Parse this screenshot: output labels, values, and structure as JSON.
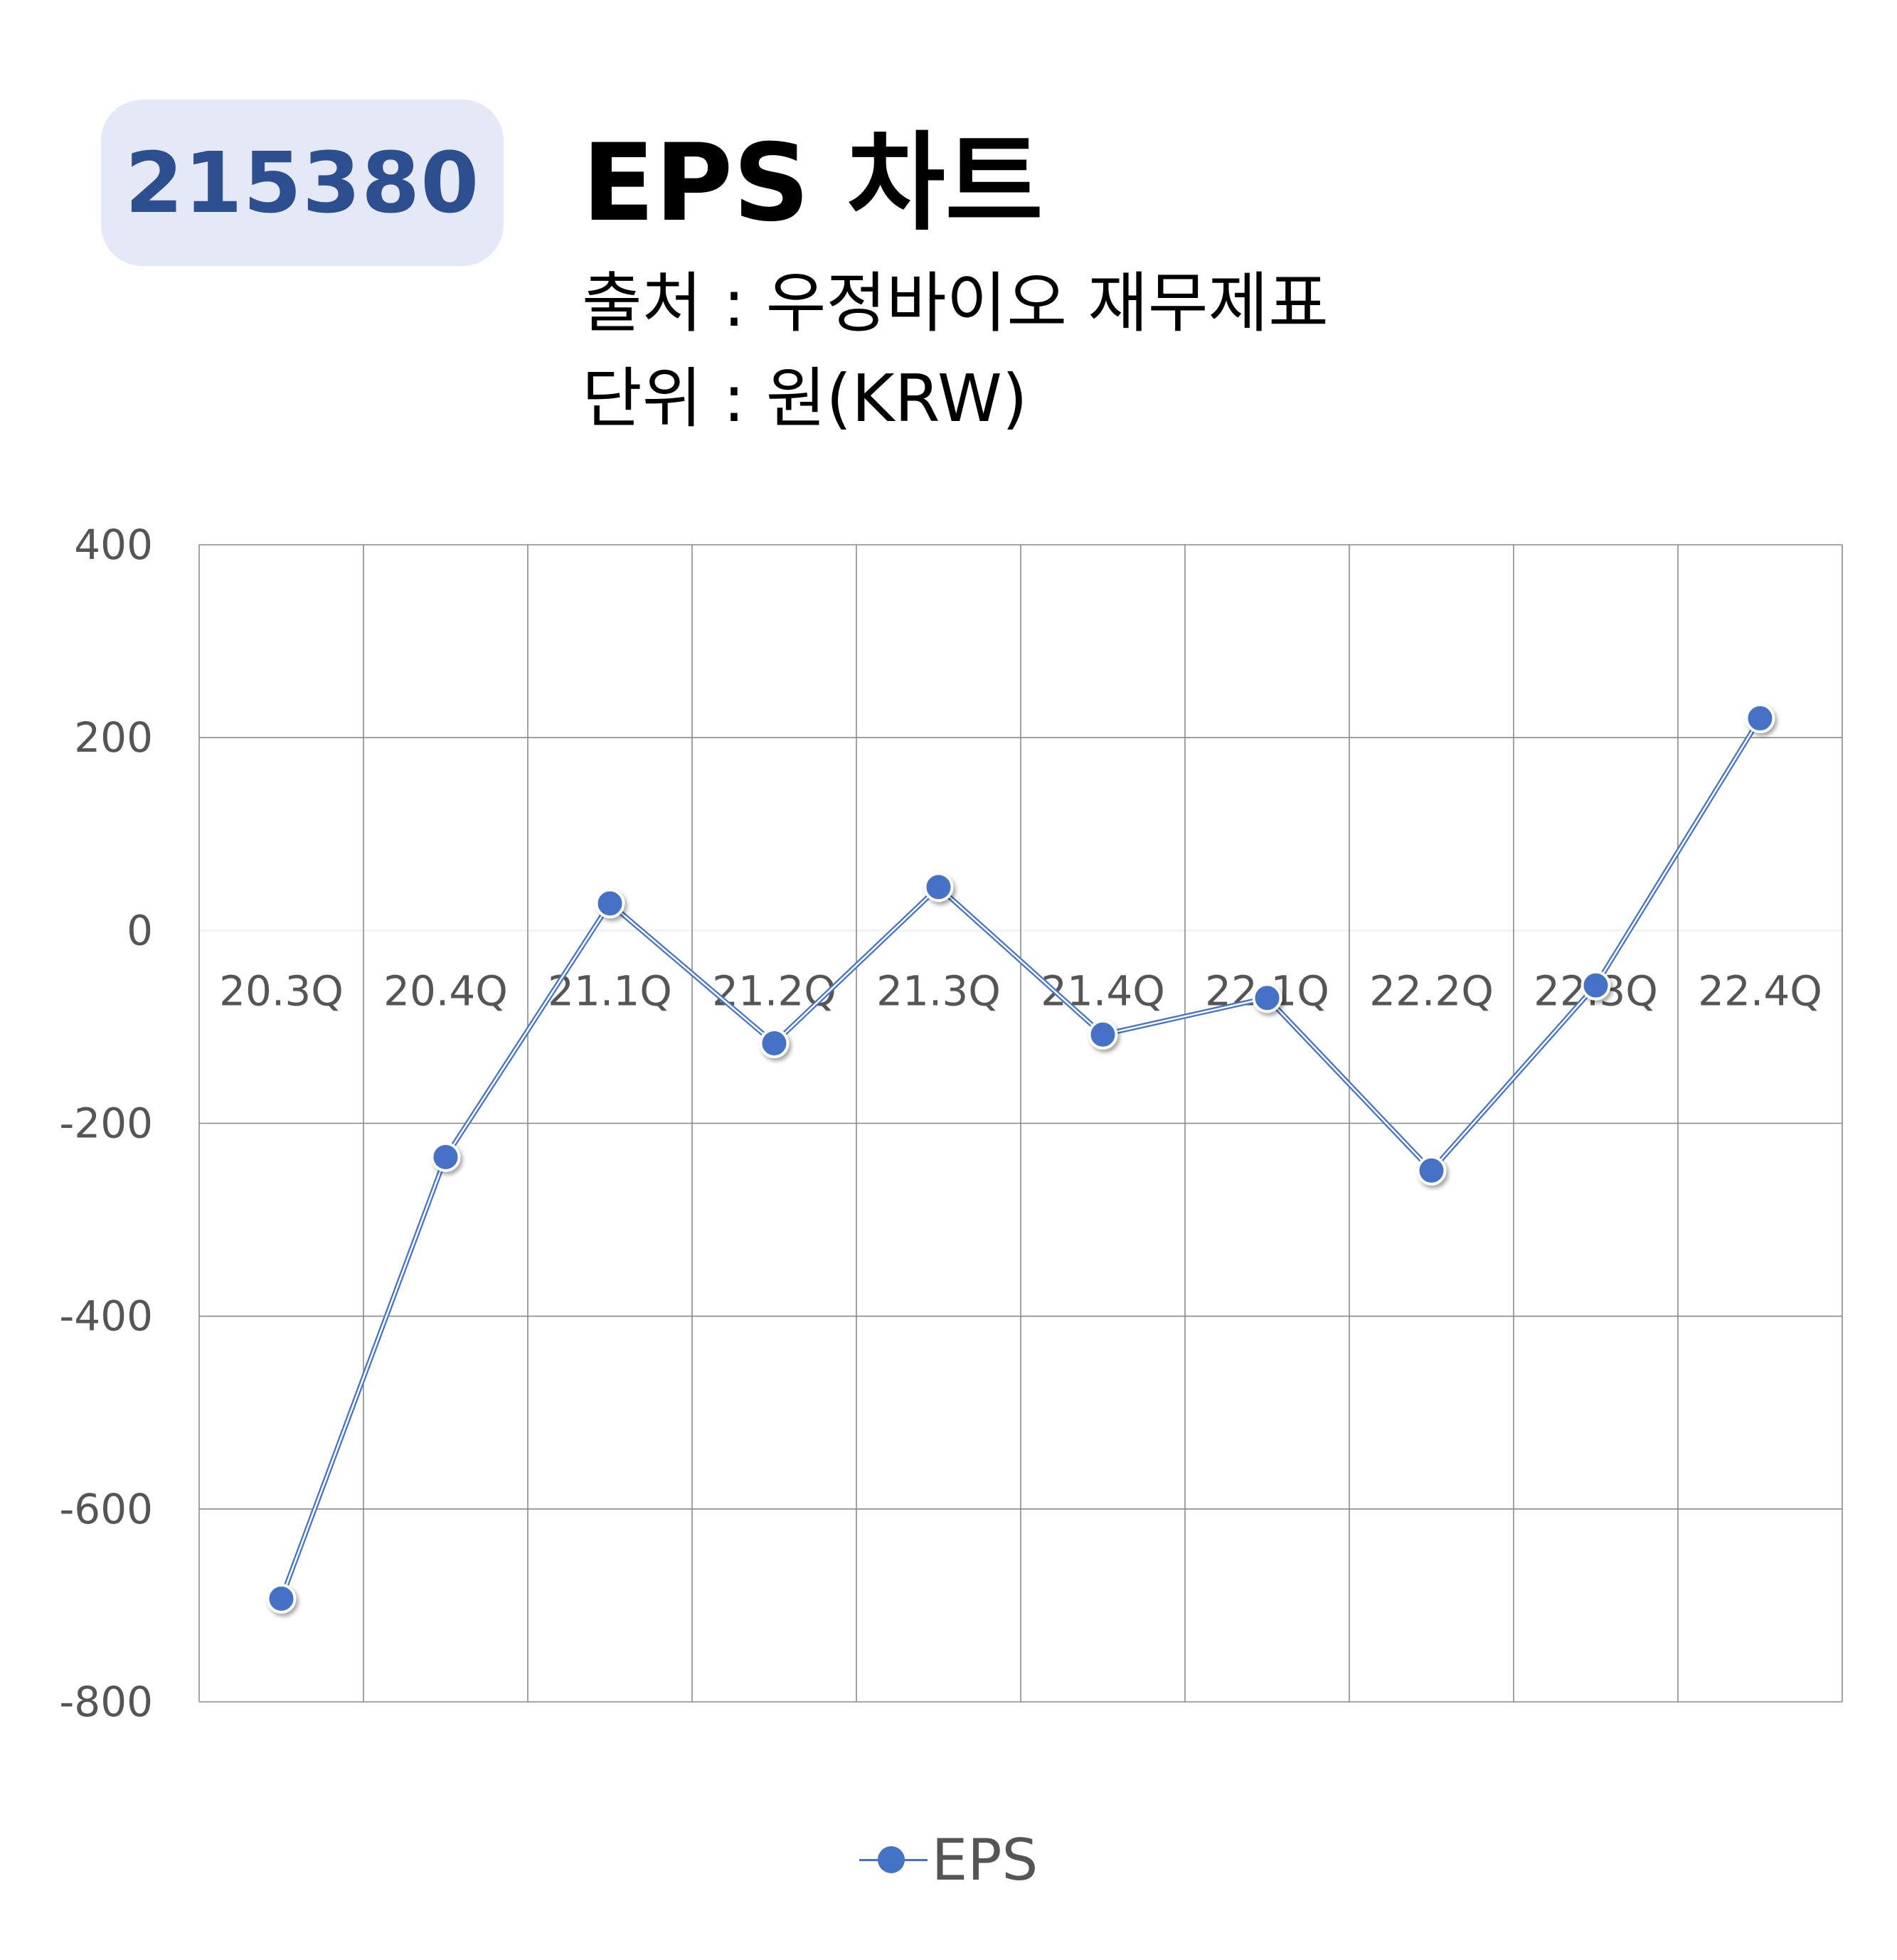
{
  "badge": {
    "code": "215380"
  },
  "header": {
    "title": "EPS 차트",
    "source": "출처 : 우정바이오 재무제표",
    "unit": "단위 : 원(KRW)"
  },
  "colors": {
    "series": "#4472c4",
    "badge_bg": "#e4e9f5",
    "badge_text": "#2e4f8f",
    "grid": "#8a8a8a",
    "tick_text": "#555555"
  },
  "chart_data": {
    "type": "line",
    "categories": [
      "20.3Q",
      "20.4Q",
      "21.1Q",
      "21.2Q",
      "21.3Q",
      "21.4Q",
      "22.1Q",
      "22.2Q",
      "22.3Q",
      "22.4Q"
    ],
    "series": [
      {
        "name": "EPS",
        "values": [
          -693,
          -235,
          28,
          -117,
          45,
          -108,
          -70,
          -249,
          -57,
          220
        ]
      }
    ],
    "ylim": [
      -800,
      400
    ],
    "yticks": [
      400,
      200,
      0,
      -200,
      -400,
      -600,
      -800
    ],
    "grid": true,
    "legend_position": "bottom-center",
    "title": "",
    "xlabel": "",
    "ylabel": ""
  }
}
